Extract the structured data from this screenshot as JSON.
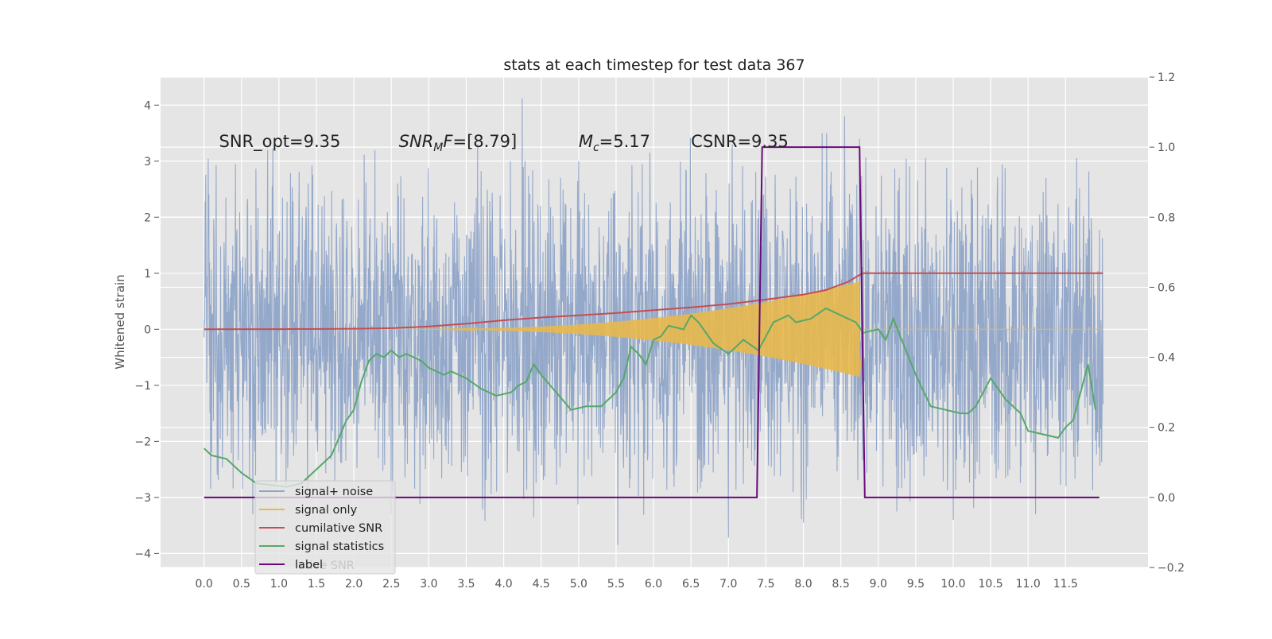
{
  "chart_data": {
    "type": "line",
    "title": "stats at each timestep for test data 367",
    "xlabel": "",
    "ylabel": "Whitened strain",
    "ylabel_right": "",
    "xlim": [
      -0.58,
      12.6
    ],
    "ylim": [
      -4.25,
      4.5
    ],
    "ylim_right": [
      -0.2,
      1.2
    ],
    "x_ticks": [
      "0.0",
      "0.5",
      "1.0",
      "1.5",
      "2.0",
      "2.5",
      "3.0",
      "3.5",
      "4.0",
      "4.5",
      "5.0",
      "5.5",
      "6.0",
      "6.5",
      "7.0",
      "7.5",
      "8.0",
      "8.5",
      "9.0",
      "9.5",
      "10.0",
      "10.5",
      "11.0",
      "11.5"
    ],
    "y_ticks": [
      "4",
      "3",
      "2",
      "1",
      "0",
      "−1",
      "−2",
      "−3",
      "−4"
    ],
    "y_ticks_right": [
      "1.2",
      "1.0",
      "0.8",
      "0.6",
      "0.4",
      "0.2",
      "0.0",
      "−0.2"
    ],
    "grid": true,
    "legend_position": "lower-left",
    "annotations": [
      {
        "text": "SNR_opt=9.35",
        "x": 0.2,
        "y": 3.25
      },
      {
        "html": "<tspan font-style='italic'>SNR</tspan><tspan font-style='italic' font-size='14' dy='5'>M</tspan><tspan font-style='italic' dy='-5'>F</tspan><tspan>=[8.79]</tspan>",
        "text": "SNR_MF=[8.79]",
        "x": 2.6,
        "y": 3.25
      },
      {
        "html": "<tspan font-style='italic'>M</tspan><tspan font-style='italic' font-size='14' dy='5'>c</tspan><tspan dy='-5'>=5.17</tspan>",
        "text": "M_c=5.17",
        "x": 5.0,
        "y": 3.25
      },
      {
        "text": "CSNR=9.35",
        "x": 6.5,
        "y": 3.25
      }
    ],
    "series": [
      {
        "name": "signal+ noise",
        "color": "#8fa4c8",
        "axis": "left",
        "kind": "noise",
        "x_range": [
          0.0,
          12.0
        ],
        "envelope": 1.3,
        "peaks": [
          {
            "x": 0.42,
            "y": 2.95
          },
          {
            "x": 0.85,
            "y": 3.2
          },
          {
            "x": 2.28,
            "y": 3.2
          },
          {
            "x": 3.65,
            "y": 3.3
          },
          {
            "x": 4.25,
            "y": 4.12
          },
          {
            "x": 5.0,
            "y": 3.0
          },
          {
            "x": 5.95,
            "y": 3.15
          },
          {
            "x": 7.05,
            "y": 3.3
          },
          {
            "x": 8.25,
            "y": 3.5
          },
          {
            "x": 8.55,
            "y": 3.8
          },
          {
            "x": 8.75,
            "y": 3.4
          },
          {
            "x": 6.0,
            "y": -0.8
          },
          {
            "x": 5.52,
            "y": -3.85
          },
          {
            "x": 7.0,
            "y": -3.72
          },
          {
            "x": 3.75,
            "y": -3.42
          },
          {
            "x": 8.0,
            "y": -3.45
          },
          {
            "x": 10.0,
            "y": -3.4
          },
          {
            "x": 11.1,
            "y": -3.3
          },
          {
            "x": 4.4,
            "y": -3.35
          },
          {
            "x": 2.5,
            "y": -3.3
          },
          {
            "x": 9.25,
            "y": -3.25
          },
          {
            "x": 0.65,
            "y": -3.3
          }
        ]
      },
      {
        "name": "signal only",
        "color": "#e8b84b",
        "axis": "left",
        "kind": "chirp",
        "start": 2.5,
        "merger": 8.75,
        "end": 12.0,
        "peak_amplitude": 0.85
      },
      {
        "name": "cumilative SNR",
        "color": "#c44e52",
        "axis": "left",
        "kind": "line",
        "x": [
          0.0,
          1.0,
          2.0,
          2.5,
          3.0,
          3.5,
          4.0,
          4.5,
          5.0,
          5.5,
          6.0,
          6.5,
          7.0,
          7.5,
          8.0,
          8.3,
          8.6,
          8.75,
          8.8,
          9.0,
          10.0,
          11.0,
          12.0
        ],
        "y": [
          0.0,
          0.003,
          0.01,
          0.02,
          0.05,
          0.1,
          0.16,
          0.21,
          0.25,
          0.29,
          0.34,
          0.39,
          0.45,
          0.53,
          0.62,
          0.7,
          0.85,
          0.97,
          1.0,
          1.0,
          1.0,
          1.0,
          1.0
        ]
      },
      {
        "name": "signal statistics",
        "color": "#55a868",
        "axis": "right",
        "kind": "line",
        "x": [
          0.0,
          0.1,
          0.3,
          0.5,
          0.7,
          0.9,
          1.1,
          1.3,
          1.5,
          1.7,
          1.9,
          2.0,
          2.1,
          2.2,
          2.3,
          2.4,
          2.5,
          2.6,
          2.7,
          2.8,
          2.9,
          3.0,
          3.1,
          3.2,
          3.3,
          3.5,
          3.7,
          3.9,
          4.1,
          4.2,
          4.3,
          4.4,
          4.5,
          4.7,
          4.9,
          5.1,
          5.3,
          5.5,
          5.6,
          5.7,
          5.8,
          5.9,
          6.0,
          6.1,
          6.2,
          6.4,
          6.5,
          6.6,
          6.8,
          7.0,
          7.2,
          7.4,
          7.6,
          7.8,
          7.9,
          8.1,
          8.3,
          8.5,
          8.7,
          8.8,
          9.0,
          9.1,
          9.2,
          9.5,
          9.7,
          9.9,
          10.1,
          10.2,
          10.3,
          10.5,
          10.7,
          10.9,
          11.0,
          11.2,
          11.4,
          11.5,
          11.6,
          11.8,
          11.9
        ],
        "y": [
          0.14,
          0.12,
          0.11,
          0.07,
          0.04,
          0.035,
          0.03,
          0.04,
          0.08,
          0.12,
          0.22,
          0.25,
          0.33,
          0.39,
          0.41,
          0.4,
          0.42,
          0.4,
          0.41,
          0.4,
          0.39,
          0.37,
          0.36,
          0.35,
          0.36,
          0.34,
          0.31,
          0.29,
          0.3,
          0.32,
          0.33,
          0.38,
          0.35,
          0.3,
          0.25,
          0.26,
          0.26,
          0.3,
          0.34,
          0.43,
          0.41,
          0.38,
          0.45,
          0.46,
          0.49,
          0.48,
          0.52,
          0.5,
          0.44,
          0.41,
          0.45,
          0.42,
          0.5,
          0.52,
          0.5,
          0.51,
          0.54,
          0.52,
          0.5,
          0.47,
          0.48,
          0.45,
          0.51,
          0.35,
          0.26,
          0.25,
          0.24,
          0.24,
          0.26,
          0.34,
          0.28,
          0.24,
          0.19,
          0.18,
          0.17,
          0.2,
          0.22,
          0.38,
          0.25
        ]
      },
      {
        "name": "label",
        "color": "#6a0a7a",
        "axis": "right",
        "kind": "line",
        "x": [
          0.0,
          7.38,
          7.45,
          8.75,
          8.82,
          11.95
        ],
        "y": [
          0.0,
          0.0,
          1.0,
          1.0,
          0.0,
          0.0
        ]
      }
    ],
    "legend_overlap_text": "lative SNR"
  }
}
